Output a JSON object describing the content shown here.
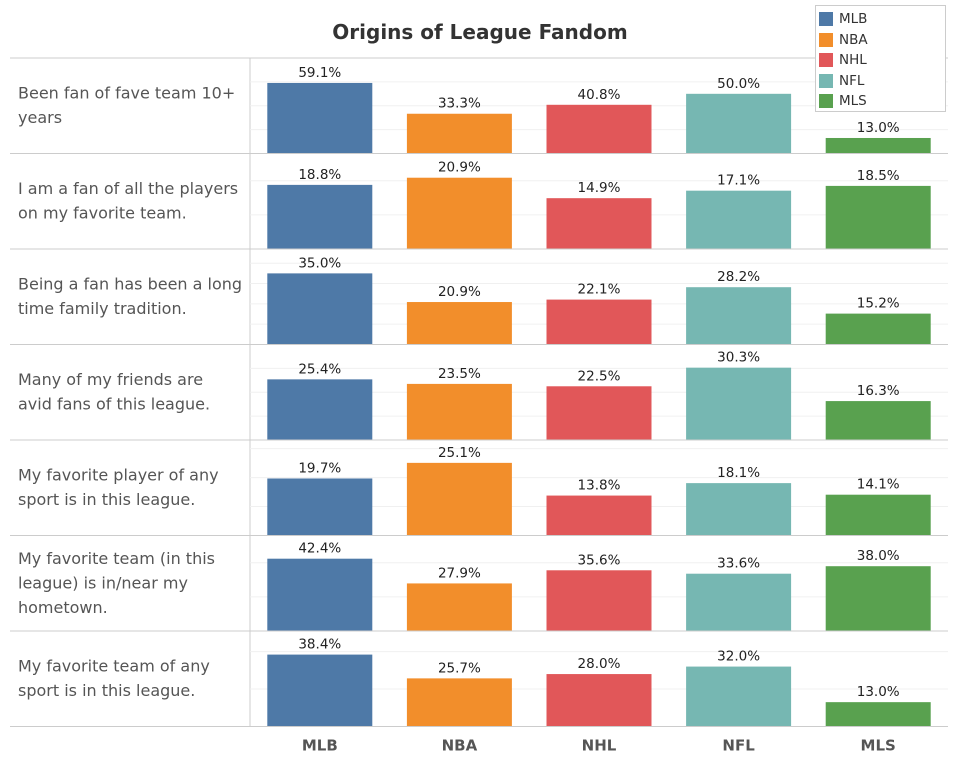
{
  "chart_data": {
    "type": "bar",
    "title": "Origins of League Fandom",
    "categories": [
      "MLB",
      "NBA",
      "NHL",
      "NFL",
      "MLS"
    ],
    "colors": {
      "MLB": "#4e79a7",
      "NBA": "#f28e2b",
      "NHL": "#e15759",
      "NFL": "#76b7b2",
      "MLS": "#59a14f"
    },
    "legend": {
      "placement": "top-right",
      "entries": [
        "MLB",
        "NBA",
        "NHL",
        "NFL",
        "MLS"
      ]
    },
    "grid": true,
    "rows": [
      {
        "label": [
          "Been fan of fave team 10+",
          "years"
        ],
        "values": [
          59.1,
          33.3,
          40.8,
          50.0,
          13.0
        ],
        "ylim": [
          0,
          80
        ],
        "grid_step": 20
      },
      {
        "label": [
          "I am a fan of all the players",
          "on my favorite team."
        ],
        "values": [
          18.8,
          20.9,
          14.9,
          17.1,
          18.5
        ],
        "ylim": [
          0,
          28
        ],
        "grid_step": 10
      },
      {
        "label": [
          "Being a fan has been a long",
          "time family tradition."
        ],
        "values": [
          35.0,
          20.9,
          22.1,
          28.2,
          15.2
        ],
        "ylim": [
          0,
          47
        ],
        "grid_step": 10
      },
      {
        "label": [
          "Many of my friends are",
          "avid fans of this league."
        ],
        "values": [
          25.4,
          23.5,
          22.5,
          30.3,
          16.3
        ],
        "ylim": [
          0,
          40
        ],
        "grid_step": 10
      },
      {
        "label": [
          "My favorite player of any",
          "sport is in this league."
        ],
        "values": [
          19.7,
          25.1,
          13.8,
          18.1,
          14.1
        ],
        "ylim": [
          0,
          33
        ],
        "grid_step": 10
      },
      {
        "label": [
          "My favorite team (in this",
          "league) is in/near my",
          "hometown."
        ],
        "values": [
          42.4,
          27.9,
          35.6,
          33.6,
          38.0
        ],
        "ylim": [
          0,
          56
        ],
        "grid_step": 20
      },
      {
        "label": [
          "My favorite team of any",
          "sport is in this league."
        ],
        "values": [
          38.4,
          25.7,
          28.0,
          32.0,
          13.0
        ],
        "ylim": [
          0,
          51
        ],
        "grid_step": 20
      }
    ]
  }
}
